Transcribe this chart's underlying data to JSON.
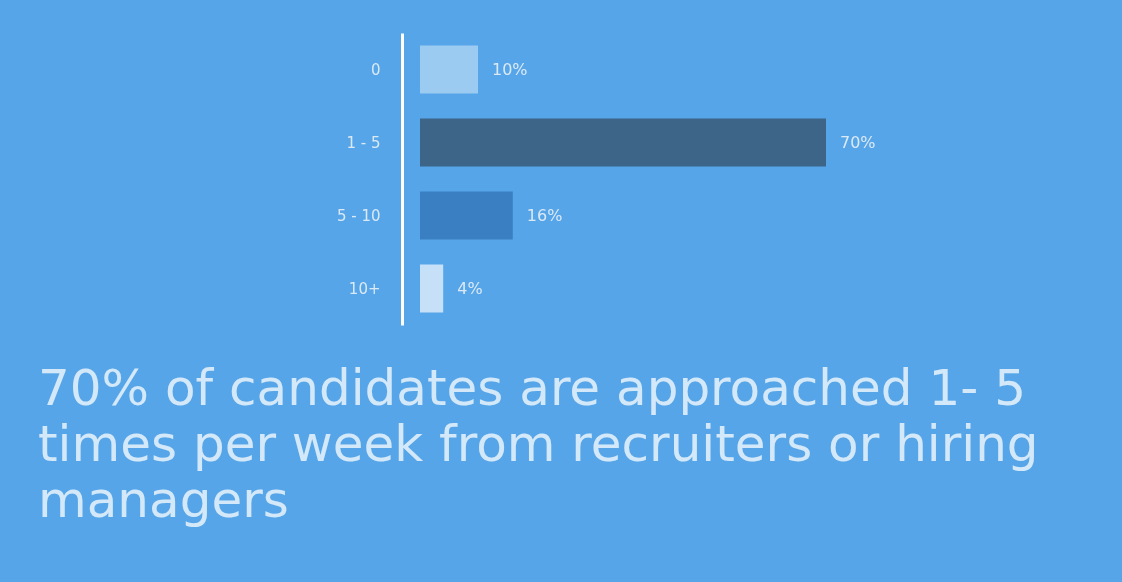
{
  "chart_data": {
    "type": "bar",
    "orientation": "horizontal",
    "title": "70% of candidates are approached 1- 5 times per week from recruiters or hiring managers",
    "categories": [
      "0",
      "1 - 5",
      "5 - 10",
      "10+"
    ],
    "values": [
      10,
      70,
      16,
      4
    ],
    "colors": [
      "#9ccbf2",
      "#3d6587",
      "#3a7fc1",
      "#c5e0f7"
    ],
    "value_labels": [
      "10%",
      "70%",
      "16%",
      "4%"
    ]
  }
}
